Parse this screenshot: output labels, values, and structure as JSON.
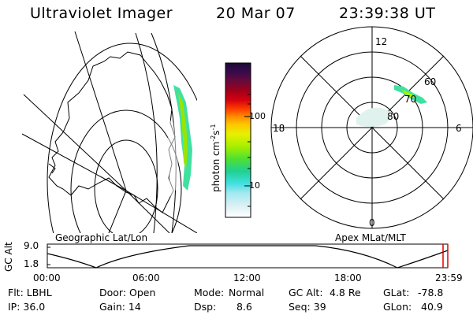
{
  "header": {
    "title": "Ultraviolet Imager",
    "date": "20 Mar 07",
    "time": "23:39:38 UT"
  },
  "colorbar": {
    "unit_label": "photon cm",
    "unit_sup1": "-2",
    "unit_s": "s",
    "unit_sup2": "-1",
    "ticks": [
      "100",
      "10"
    ],
    "colors": [
      "#1a0a33",
      "#3a0a4d",
      "#6a0a3a",
      "#a0001a",
      "#d40010",
      "#ff4000",
      "#ff9000",
      "#ffc800",
      "#e6f000",
      "#a8ef00",
      "#50e030",
      "#20d090",
      "#40e0e0",
      "#a0e8f0",
      "#d8f0f4",
      "#ffffff"
    ]
  },
  "polar": {
    "mlt_labels": {
      "top": "12",
      "left": "18",
      "right": "6",
      "bottom": "0"
    },
    "lat_labels": [
      "60",
      "70",
      "80"
    ]
  },
  "timeline": {
    "left_title": "Geographic Lat/Lon",
    "right_title": "Apex MLat/MLT",
    "axis_label": "GC Alt",
    "y_ticks": [
      "9.0",
      "1.8"
    ],
    "x_ticks": [
      "00:00",
      "06:00",
      "12:00",
      "18:00",
      "23:59"
    ],
    "marker_color": "#e00000"
  },
  "footer": {
    "flt": "Flt: LBHL",
    "door": "Door: Open",
    "mode_label": "Mode:",
    "mode_value": "Normal",
    "gcalt_label": "GC Alt:",
    "gcalt_value": "4.8 Re",
    "glat_label": "GLat:",
    "glat_value": "-78.8",
    "ip": "IP: 36.0",
    "gain": "Gain: 14",
    "dsp_label": "Dsp:",
    "dsp_value": "8.6",
    "seq": "Seq: 39",
    "glon_label": "GLon:",
    "glon_value": "40.9"
  }
}
